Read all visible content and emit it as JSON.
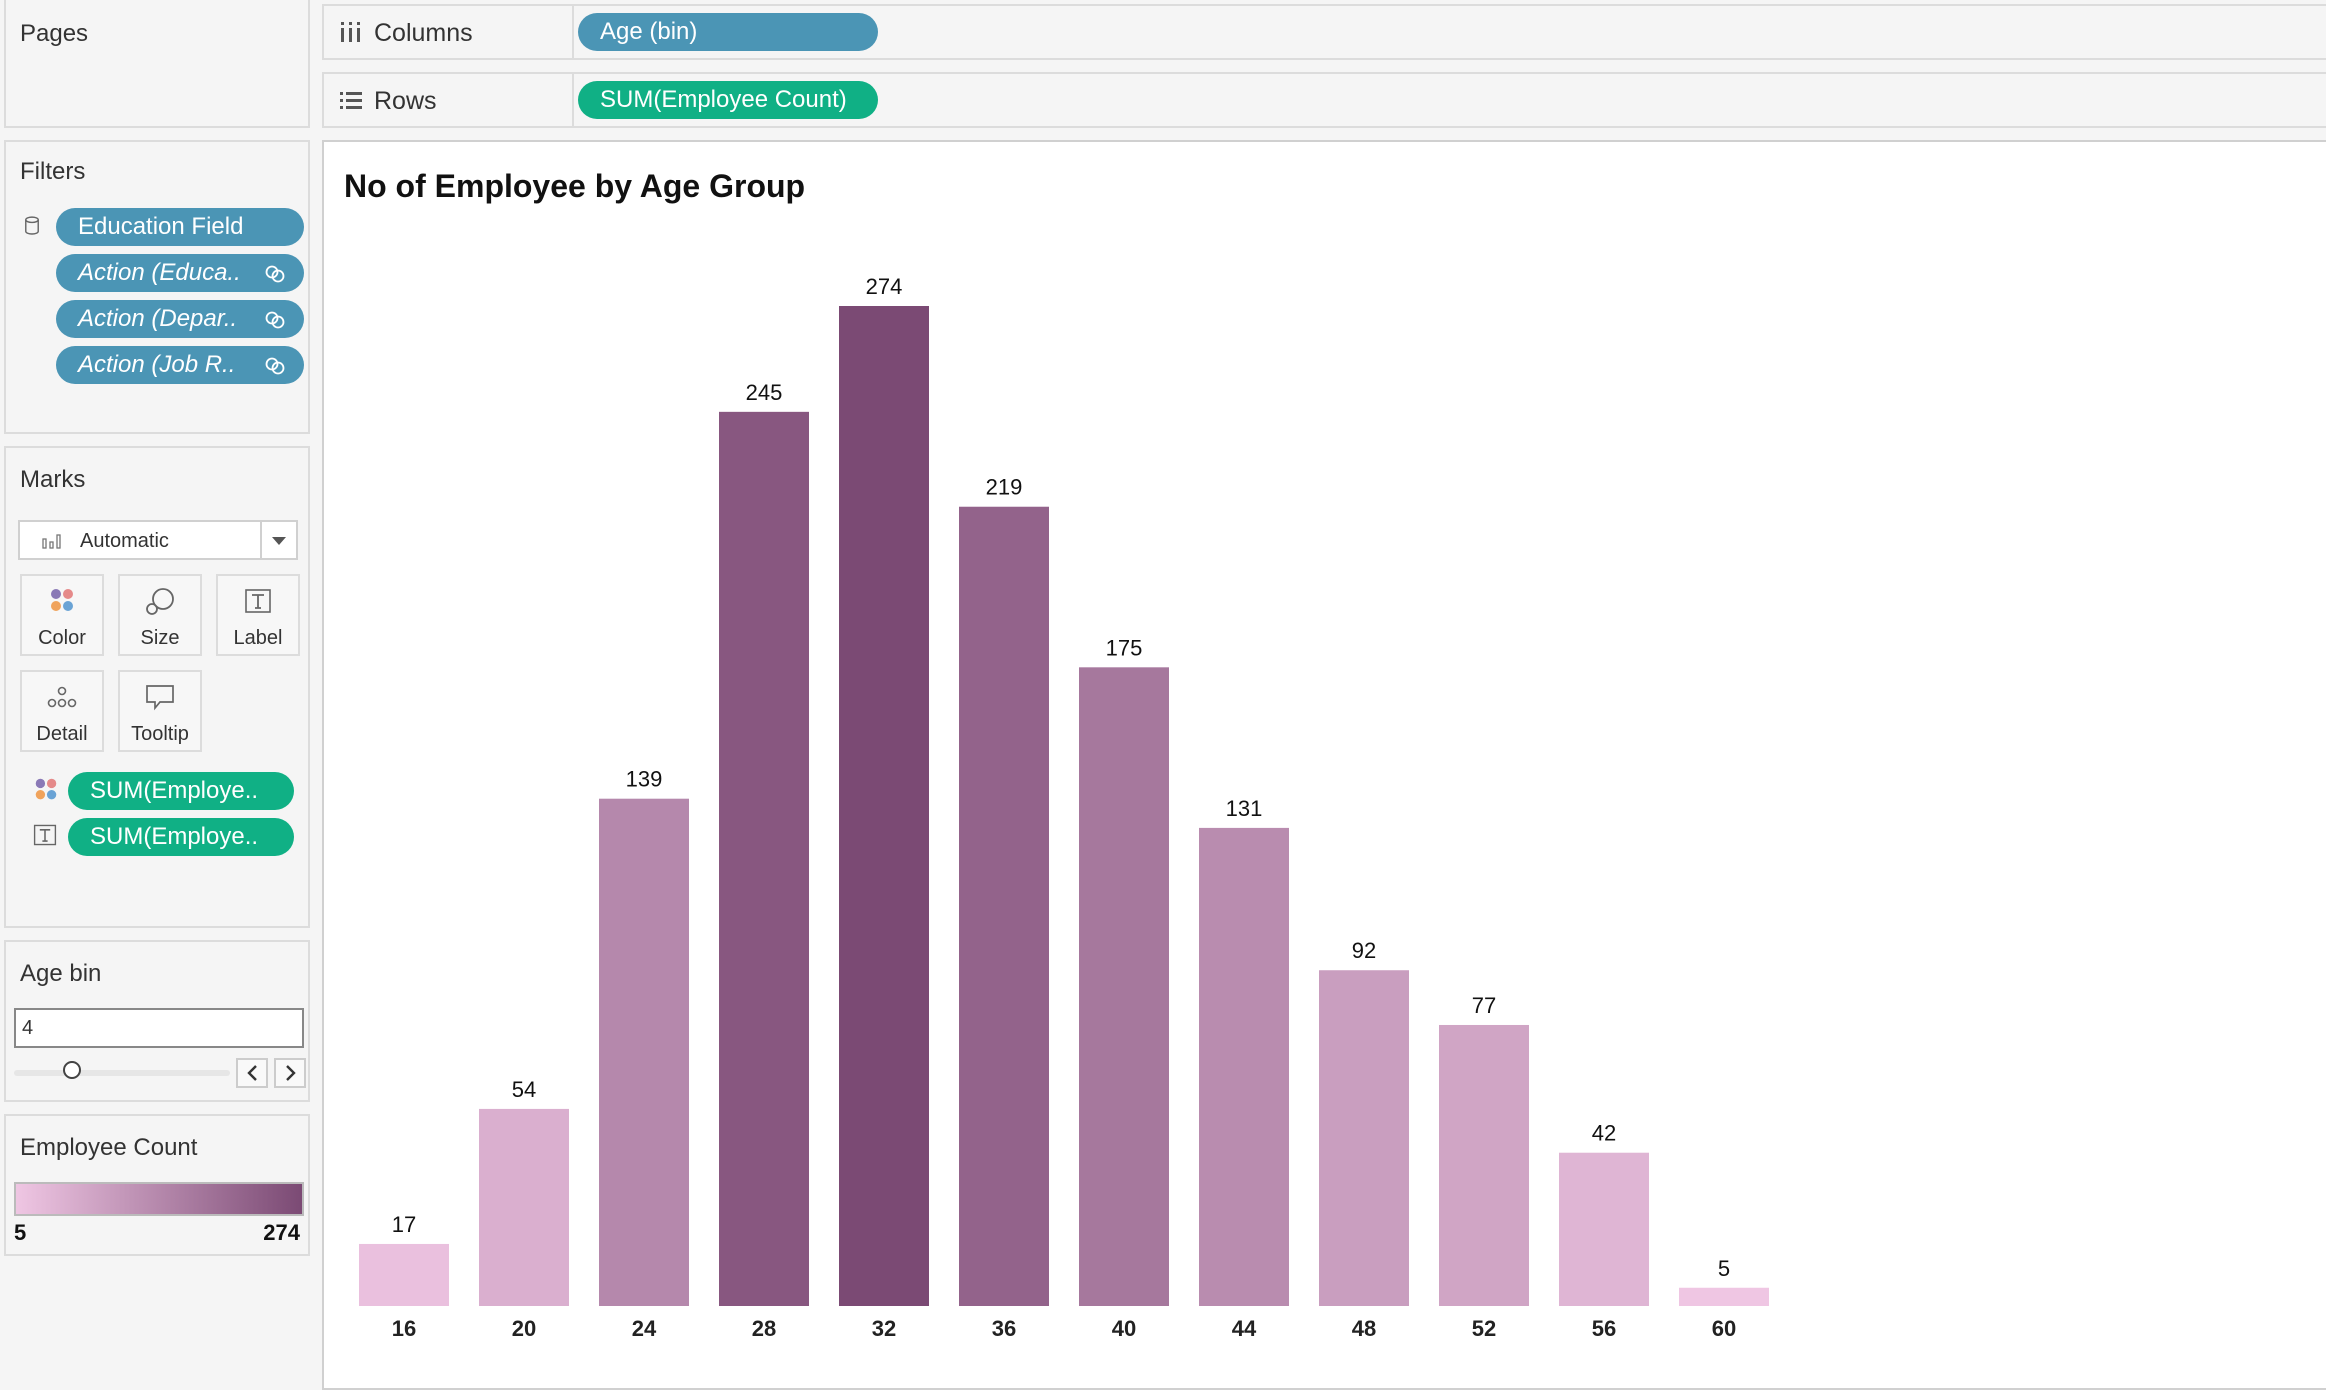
{
  "pages": {
    "title": "Pages"
  },
  "columns_shelf": {
    "label": "Columns",
    "pill": "Age (bin)"
  },
  "rows_shelf": {
    "label": "Rows",
    "pill": "SUM(Employee Count)"
  },
  "filters": {
    "title": "Filters",
    "items": [
      {
        "label": "Education Field"
      },
      {
        "label": "Action (Educa..",
        "linked": true
      },
      {
        "label": "Action (Depar..",
        "linked": true
      },
      {
        "label": "Action (Job R..",
        "linked": true
      }
    ]
  },
  "marks": {
    "title": "Marks",
    "type": "Automatic",
    "buttons": {
      "color": "Color",
      "size": "Size",
      "label": "Label",
      "detail": "Detail",
      "tooltip": "Tooltip"
    },
    "fields": [
      {
        "icon": "color-dots-icon",
        "label": "SUM(Employe.."
      },
      {
        "icon": "text-label-icon",
        "label": "SUM(Employe.."
      }
    ]
  },
  "age_bin": {
    "title": "Age bin",
    "value": "4",
    "slider_fraction": 0.27
  },
  "legend": {
    "title": "Employee Count",
    "min": "5",
    "max": "274",
    "color_low": "#efc6e3",
    "color_high": "#7b4a74"
  },
  "chart_data": {
    "type": "bar",
    "title": "No of Employee by Age Group",
    "categories": [
      "16",
      "20",
      "24",
      "28",
      "32",
      "36",
      "40",
      "44",
      "48",
      "52",
      "56",
      "60"
    ],
    "values": [
      17,
      54,
      139,
      245,
      274,
      219,
      175,
      131,
      92,
      77,
      42,
      5
    ],
    "color_scale": {
      "min": 5,
      "max": 274,
      "low": "#efc6e3",
      "high": "#7b4a74"
    },
    "ylim": [
      0,
      274
    ],
    "grid": false
  }
}
